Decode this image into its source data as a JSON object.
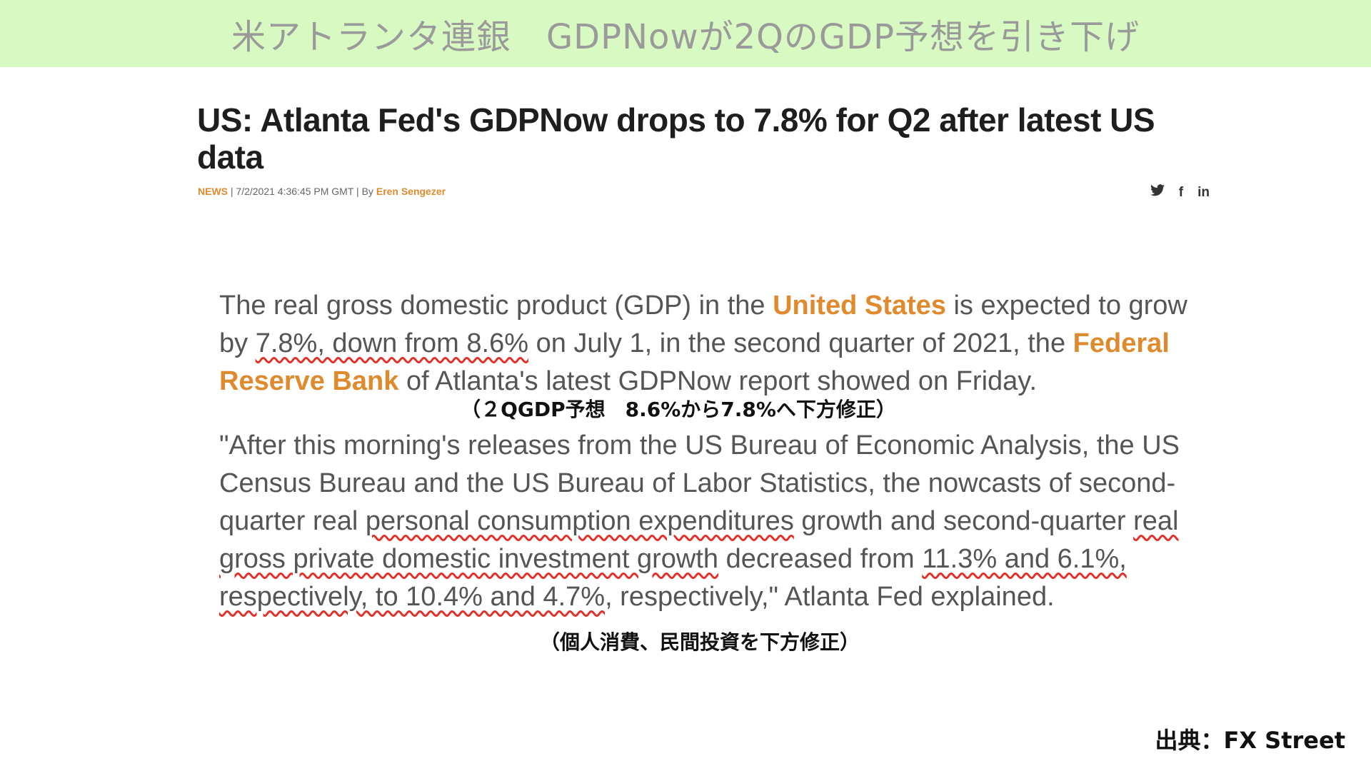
{
  "banner": {
    "title": "米アトランタ連銀　GDPNowが2QのGDP予想を引き下げ"
  },
  "article": {
    "headline": "US: Atlanta Fed's GDPNow drops to 7.8% for Q2 after latest US data",
    "meta": {
      "tag": "NEWS",
      "separator1": " | ",
      "timestamp": "7/2/2021 4:36:45 PM GMT",
      "separator2": " | By ",
      "author": "Eren Sengezer"
    },
    "share": {
      "twitter": "🐦",
      "facebook": "f",
      "linkedin": "in"
    },
    "para1": {
      "t1": "The real gross domestic product (GDP) in the ",
      "link1": "United States",
      "t2": " is expected to grow by ",
      "u1": "7.8%, down from 8.6%",
      "t3": " on July 1, in the second quarter of 2021, the ",
      "link2": "Federal Reserve Bank",
      "t4": " of Atlanta's latest GDPNow report showed on Friday."
    },
    "note1": "（２QGDP予想　8.6%から7.8%へ下方修正）",
    "para2": {
      "t1": "\"After this morning's releases from the US Bureau of Economic Analysis, the US Census Bureau and the US Bureau of Labor Statistics, the nowcasts of second-quarter real ",
      "u1": "personal consumption expenditures",
      "t2": " growth and second-quarter ",
      "u2": "real gross private domestic investment growth",
      "t3": " decreased from ",
      "u3": "11.3% and 6.1%, respectively, to 10.4% and 4.7%",
      "t4": ", respectively,\" Atlanta Fed explained."
    },
    "note2": "（個人消費、民間投資を下方修正）"
  },
  "source": "出典：FX Street",
  "colors": {
    "banner_bg": "#d8f9c2",
    "accent": "#e08a2e",
    "underline": "#e0322a"
  }
}
